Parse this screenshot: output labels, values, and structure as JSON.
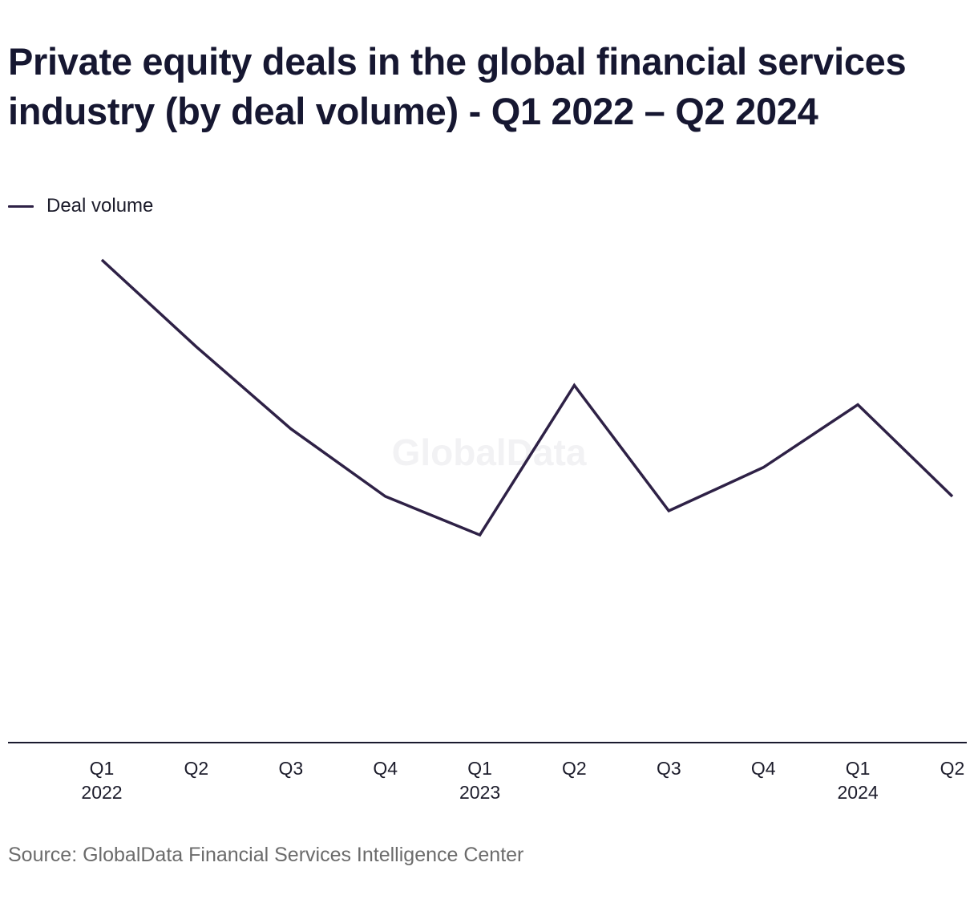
{
  "title": "Private equity deals in the global financial services industry (by deal volume) - Q1 2022 – Q2 2024",
  "legend": {
    "label": "Deal volume"
  },
  "watermark": "GlobalData",
  "source": "Source: GlobalData Financial Services Intelligence Center",
  "colors": {
    "line": "#2e2146",
    "axis": "#1a1a2e"
  },
  "chart_data": {
    "type": "line",
    "title": "Private equity deals in the global financial services industry (by deal volume) - Q1 2022 – Q2 2024",
    "xlabel": "",
    "ylabel": "",
    "grid": false,
    "legend_position": "top-left",
    "categories": [
      "Q1 2022",
      "Q2 2022",
      "Q3 2022",
      "Q4 2022",
      "Q1 2023",
      "Q2 2023",
      "Q3 2023",
      "Q4 2023",
      "Q1 2024",
      "Q2 2024"
    ],
    "tick_labels": [
      {
        "quarter": "Q1",
        "year": "2022"
      },
      {
        "quarter": "Q2",
        "year": ""
      },
      {
        "quarter": "Q3",
        "year": ""
      },
      {
        "quarter": "Q4",
        "year": ""
      },
      {
        "quarter": "Q1",
        "year": "2023"
      },
      {
        "quarter": "Q2",
        "year": ""
      },
      {
        "quarter": "Q3",
        "year": ""
      },
      {
        "quarter": "Q4",
        "year": ""
      },
      {
        "quarter": "Q1",
        "year": "2024"
      },
      {
        "quarter": "Q2",
        "year": ""
      }
    ],
    "ylim": [
      0,
      100
    ],
    "series": [
      {
        "name": "Deal volume",
        "values": [
          100,
          82,
          65,
          51,
          43,
          74,
          48,
          57,
          70,
          51
        ]
      }
    ]
  }
}
